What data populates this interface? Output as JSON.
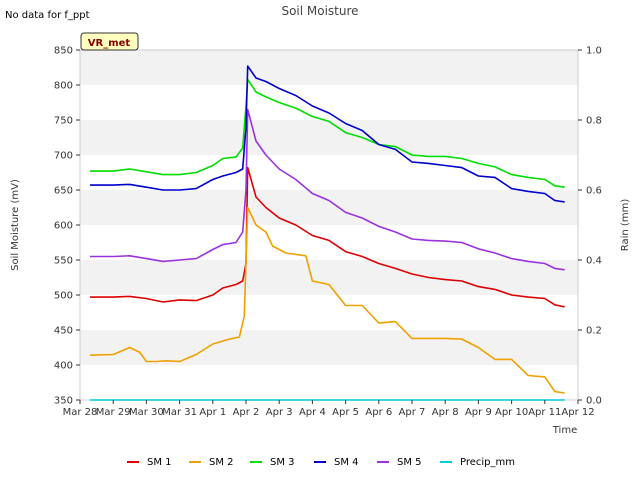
{
  "header": {
    "no_data_text": "No data for f_ppt",
    "site_badge": "VR_met"
  },
  "chart_data": {
    "type": "line",
    "title": "Soil Moisture",
    "xlabel": "Time",
    "ylabel": "Soil Moisture (mV)",
    "y2label": "Rain (mm)",
    "ylim": [
      350,
      850
    ],
    "y2lim": [
      0.0,
      1.0
    ],
    "xlim_days": [
      0,
      15
    ],
    "x_ticks": [
      "Mar 28",
      "Mar 29",
      "Mar 30",
      "Mar 31",
      "Apr 1",
      "Apr 2",
      "Apr 3",
      "Apr 4",
      "Apr 5",
      "Apr 6",
      "Apr 7",
      "Apr 8",
      "Apr 9",
      "Apr 10",
      "Apr 11",
      "Apr 12"
    ],
    "y_ticks": [
      "350",
      "400",
      "450",
      "500",
      "550",
      "600",
      "650",
      "700",
      "750",
      "800",
      "850"
    ],
    "y2_ticks": [
      "0.0",
      "0.2",
      "0.4",
      "0.6",
      "0.8",
      "1.0"
    ],
    "series": [
      {
        "name": "SM 1",
        "color": "#dd0000",
        "axis": "left",
        "x": [
          0.3,
          1,
          1.5,
          2,
          2.5,
          3,
          3.5,
          4,
          4.3,
          4.7,
          4.9,
          5.0,
          5.05,
          5.3,
          5.6,
          6,
          6.5,
          7,
          7.5,
          8,
          8.5,
          9,
          9.5,
          10,
          10.5,
          11,
          11.5,
          12,
          12.5,
          13,
          13.5,
          14,
          14.3,
          14.6
        ],
        "y": [
          497,
          497,
          498,
          495,
          490,
          493,
          492,
          500,
          510,
          515,
          520,
          545,
          682,
          640,
          625,
          610,
          600,
          585,
          578,
          562,
          555,
          545,
          538,
          530,
          525,
          522,
          520,
          512,
          508,
          500,
          497,
          495,
          486,
          483
        ]
      },
      {
        "name": "SM 2",
        "color": "#f0a000",
        "axis": "left",
        "x": [
          0.3,
          1,
          1.5,
          1.8,
          2,
          2.3,
          2.6,
          3,
          3.5,
          4,
          4.5,
          4.8,
          4.95,
          5.05,
          5.3,
          5.6,
          5.8,
          6.2,
          6.8,
          7,
          7.5,
          8,
          8.5,
          9,
          9.5,
          10,
          10.5,
          11,
          11.5,
          12,
          12.5,
          13,
          13.5,
          14,
          14.3,
          14.6
        ],
        "y": [
          414,
          415,
          425,
          418,
          405,
          405,
          406,
          405,
          415,
          430,
          437,
          440,
          470,
          625,
          600,
          590,
          570,
          560,
          556,
          520,
          515,
          485,
          485,
          460,
          462,
          438,
          438,
          438,
          437,
          425,
          408,
          408,
          385,
          383,
          362,
          360
        ]
      },
      {
        "name": "SM 3",
        "color": "#00dd00",
        "axis": "left",
        "x": [
          0.3,
          1,
          1.5,
          2,
          2.5,
          3,
          3.5,
          4,
          4.3,
          4.7,
          4.9,
          5.0,
          5.05,
          5.3,
          5.6,
          6,
          6.5,
          7,
          7.5,
          8,
          8.5,
          9,
          9.5,
          10,
          10.5,
          11,
          11.5,
          12,
          12.5,
          13,
          13.5,
          14,
          14.3,
          14.6
        ],
        "y": [
          677,
          677,
          680,
          676,
          672,
          672,
          675,
          685,
          695,
          697,
          710,
          770,
          808,
          790,
          783,
          775,
          767,
          755,
          748,
          732,
          725,
          715,
          712,
          700,
          698,
          698,
          695,
          688,
          683,
          672,
          668,
          665,
          656,
          654
        ]
      },
      {
        "name": "SM 4",
        "color": "#0000cc",
        "axis": "left",
        "x": [
          0.3,
          1,
          1.5,
          2,
          2.5,
          3,
          3.5,
          4,
          4.3,
          4.7,
          4.9,
          5.0,
          5.05,
          5.3,
          5.6,
          6,
          6.5,
          7,
          7.5,
          8,
          8.5,
          9,
          9.5,
          10,
          10.5,
          11,
          11.5,
          12,
          12.5,
          13,
          13.5,
          14,
          14.3,
          14.6
        ],
        "y": [
          657,
          657,
          658,
          654,
          650,
          650,
          652,
          665,
          670,
          675,
          680,
          740,
          827,
          810,
          805,
          795,
          785,
          770,
          760,
          745,
          735,
          715,
          708,
          690,
          688,
          685,
          682,
          670,
          668,
          652,
          648,
          645,
          635,
          633
        ]
      },
      {
        "name": "SM 5",
        "color": "#9933dd",
        "axis": "left",
        "x": [
          0.3,
          1,
          1.5,
          2,
          2.5,
          3,
          3.5,
          4,
          4.3,
          4.7,
          4.9,
          5.0,
          5.05,
          5.3,
          5.6,
          6,
          6.5,
          7,
          7.5,
          8,
          8.5,
          9,
          9.5,
          10,
          10.5,
          11,
          11.5,
          12,
          12.5,
          13,
          13.5,
          14,
          14.3,
          14.6
        ],
        "y": [
          555,
          555,
          556,
          552,
          548,
          550,
          552,
          565,
          572,
          575,
          590,
          650,
          765,
          720,
          700,
          680,
          665,
          645,
          635,
          618,
          610,
          598,
          590,
          580,
          578,
          577,
          575,
          566,
          560,
          552,
          548,
          545,
          538,
          536
        ]
      },
      {
        "name": "Precip_mm",
        "color": "#00ccdd",
        "axis": "right",
        "x": [
          0.3,
          14.6
        ],
        "y": [
          0.0,
          0.0
        ]
      }
    ],
    "legend": {
      "placement": "bottom",
      "entries": [
        "SM 1",
        "SM 2",
        "SM 3",
        "SM 4",
        "SM 5",
        "Precip_mm"
      ]
    }
  }
}
